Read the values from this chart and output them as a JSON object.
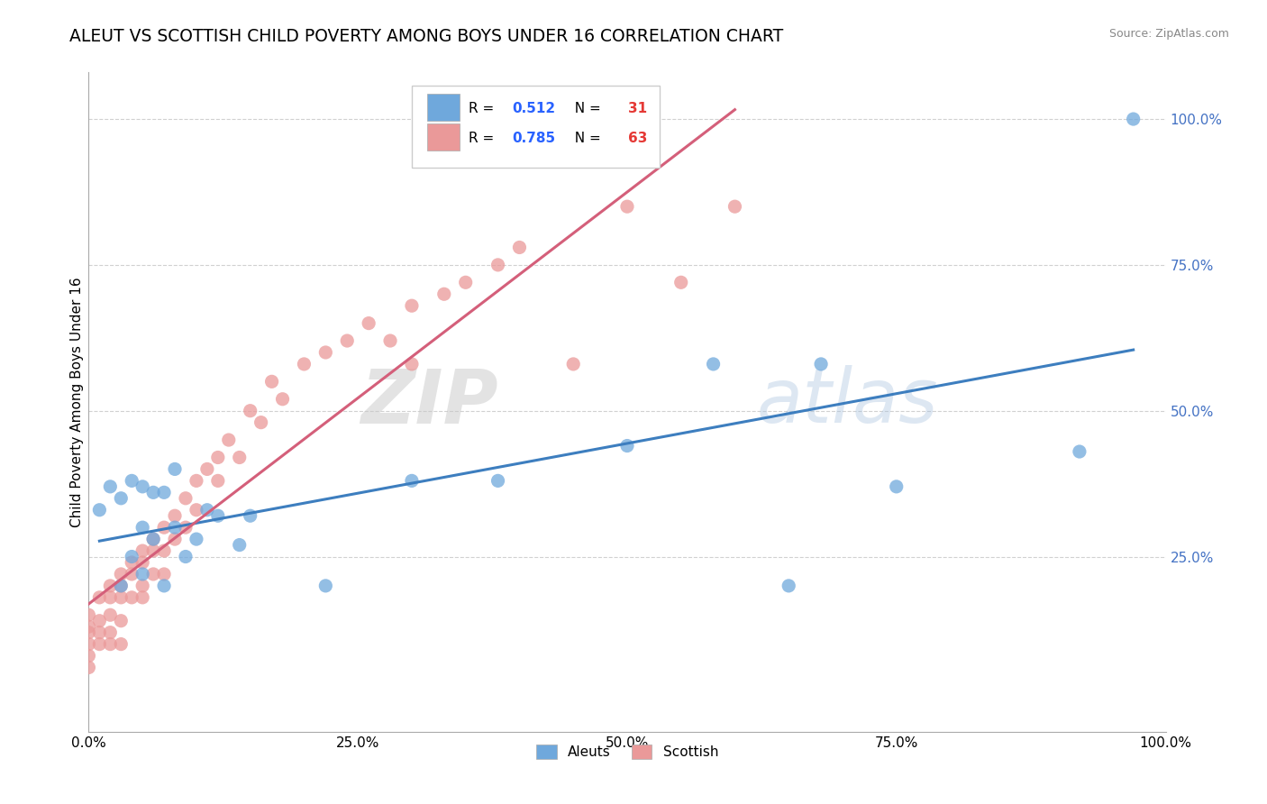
{
  "title": "ALEUT VS SCOTTISH CHILD POVERTY AMONG BOYS UNDER 16 CORRELATION CHART",
  "source": "Source: ZipAtlas.com",
  "ylabel": "Child Poverty Among Boys Under 16",
  "xlim": [
    0.0,
    1.0
  ],
  "ylim": [
    -0.05,
    1.08
  ],
  "xtick_labels": [
    "0.0%",
    "25.0%",
    "50.0%",
    "75.0%",
    "100.0%"
  ],
  "xtick_positions": [
    0.0,
    0.25,
    0.5,
    0.75,
    1.0
  ],
  "ytick_labels": [
    "25.0%",
    "50.0%",
    "75.0%",
    "100.0%"
  ],
  "ytick_positions": [
    0.25,
    0.5,
    0.75,
    1.0
  ],
  "aleut_color": "#6fa8dc",
  "scottish_color": "#ea9999",
  "aleut_line_color": "#3d7ebf",
  "scottish_line_color": "#d45f7a",
  "aleut_R": "0.512",
  "aleut_N": "31",
  "scottish_R": "0.785",
  "scottish_N": "63",
  "watermark_zip": "ZIP",
  "watermark_atlas": "atlas",
  "legend_R_color": "#2962ff",
  "legend_N_color": "#e53935",
  "background_color": "#ffffff",
  "grid_color": "#cccccc",
  "title_fontsize": 13.5,
  "axis_label_fontsize": 11,
  "tick_fontsize": 11,
  "ytick_color": "#4472c4",
  "aleut_x": [
    0.01,
    0.02,
    0.03,
    0.03,
    0.04,
    0.04,
    0.05,
    0.05,
    0.05,
    0.06,
    0.06,
    0.07,
    0.07,
    0.08,
    0.08,
    0.09,
    0.1,
    0.11,
    0.12,
    0.14,
    0.15,
    0.22,
    0.3,
    0.38,
    0.5,
    0.58,
    0.65,
    0.68,
    0.75,
    0.92,
    0.97
  ],
  "aleut_y": [
    0.33,
    0.37,
    0.2,
    0.35,
    0.25,
    0.38,
    0.3,
    0.22,
    0.37,
    0.36,
    0.28,
    0.36,
    0.2,
    0.3,
    0.4,
    0.25,
    0.28,
    0.33,
    0.32,
    0.27,
    0.32,
    0.2,
    0.38,
    0.38,
    0.44,
    0.58,
    0.2,
    0.58,
    0.37,
    0.43,
    1.0
  ],
  "scottish_x": [
    0.0,
    0.0,
    0.0,
    0.0,
    0.0,
    0.0,
    0.01,
    0.01,
    0.01,
    0.01,
    0.02,
    0.02,
    0.02,
    0.02,
    0.02,
    0.03,
    0.03,
    0.03,
    0.03,
    0.03,
    0.04,
    0.04,
    0.04,
    0.05,
    0.05,
    0.05,
    0.05,
    0.06,
    0.06,
    0.06,
    0.07,
    0.07,
    0.07,
    0.08,
    0.08,
    0.09,
    0.09,
    0.1,
    0.1,
    0.11,
    0.12,
    0.12,
    0.13,
    0.14,
    0.15,
    0.16,
    0.17,
    0.18,
    0.2,
    0.22,
    0.24,
    0.26,
    0.28,
    0.3,
    0.33,
    0.35,
    0.38,
    0.4,
    0.45,
    0.5,
    0.55,
    0.6,
    0.3
  ],
  "scottish_y": [
    0.12,
    0.08,
    0.1,
    0.13,
    0.06,
    0.15,
    0.18,
    0.14,
    0.1,
    0.12,
    0.2,
    0.15,
    0.1,
    0.18,
    0.12,
    0.22,
    0.18,
    0.14,
    0.2,
    0.1,
    0.24,
    0.18,
    0.22,
    0.26,
    0.2,
    0.18,
    0.24,
    0.28,
    0.22,
    0.26,
    0.3,
    0.26,
    0.22,
    0.32,
    0.28,
    0.35,
    0.3,
    0.38,
    0.33,
    0.4,
    0.42,
    0.38,
    0.45,
    0.42,
    0.5,
    0.48,
    0.55,
    0.52,
    0.58,
    0.6,
    0.62,
    0.65,
    0.62,
    0.68,
    0.7,
    0.72,
    0.75,
    0.78,
    0.58,
    0.85,
    0.72,
    0.85,
    0.58
  ]
}
